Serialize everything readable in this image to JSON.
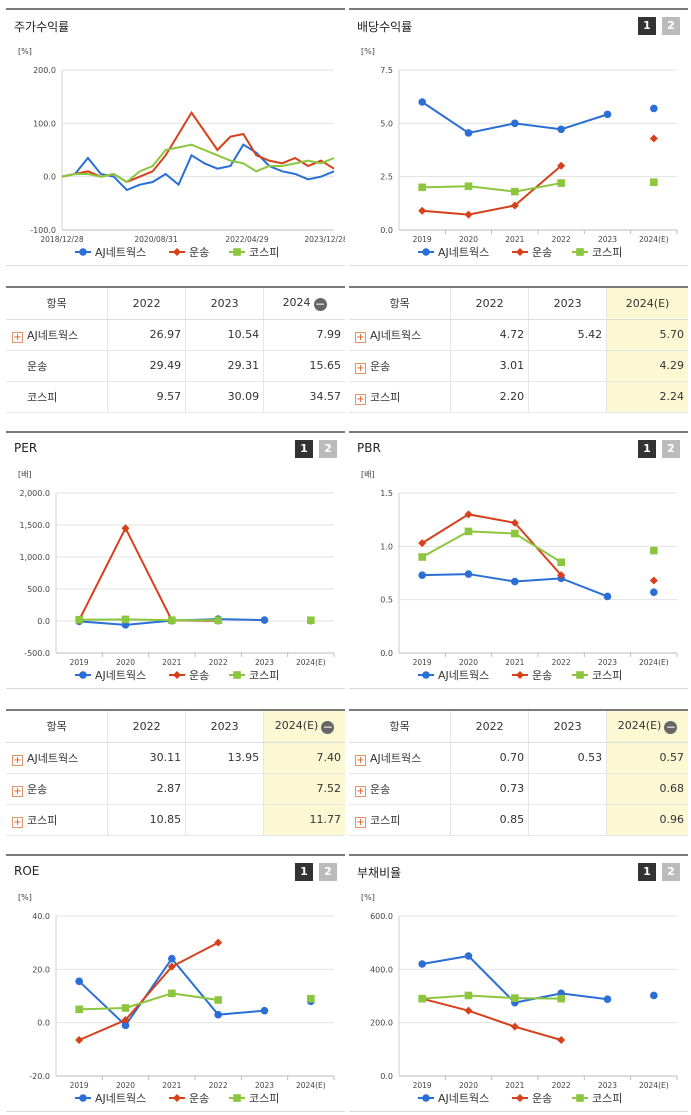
{
  "colors": {
    "company": "#2b6fd6",
    "industry": "#d6401b",
    "kospi": "#8cc63f"
  },
  "charts": [
    {
      "id": "stock-return",
      "title": "주가수익률",
      "unit": "[%]",
      "pager": false,
      "type": "line",
      "ylim": [
        -100,
        200
      ],
      "yticks": [
        "200.0",
        "100.0",
        "0.0",
        "-100.0"
      ],
      "xticks": [
        "2018/12/28",
        "2020/08/31",
        "2022/04/29",
        "2023/12/28"
      ],
      "legend": [
        "AJ네트웍스",
        "운송",
        "코스피"
      ]
    },
    {
      "id": "dividend-yield",
      "title": "배당수익률",
      "unit": "[%]",
      "pager": true,
      "yticks": [
        "7.5",
        "5.0",
        "2.5",
        "0.0"
      ],
      "ylim": [
        0,
        7.5
      ],
      "xticks": [
        "2019",
        "2020",
        "2021",
        "2022",
        "2023",
        "2024(E)"
      ],
      "legend": [
        "AJ네트웍스",
        "운송",
        "코스피"
      ]
    },
    {
      "id": "per",
      "title": "PER",
      "unit": "[배]",
      "pager": true,
      "yticks": [
        "2,000.0",
        "1,500.0",
        "1,000.0",
        "500.0",
        "0.0",
        "-500.0"
      ],
      "ylim": [
        -500,
        2000
      ],
      "xticks": [
        "2019",
        "2020",
        "2021",
        "2022",
        "2023",
        "2024(E)"
      ],
      "legend": [
        "AJ네트웍스",
        "운송",
        "코스피"
      ]
    },
    {
      "id": "pbr",
      "title": "PBR",
      "unit": "[배]",
      "pager": true,
      "yticks": [
        "1.5",
        "1.0",
        "0.5",
        "0.0"
      ],
      "ylim": [
        0,
        1.5
      ],
      "xticks": [
        "2019",
        "2020",
        "2021",
        "2022",
        "2023",
        "2024(E)"
      ],
      "legend": [
        "AJ네트웍스",
        "운송",
        "코스피"
      ]
    },
    {
      "id": "roe",
      "title": "ROE",
      "unit": "[%]",
      "pager": true,
      "yticks": [
        "40.0",
        "20.0",
        "0.0",
        "-20.0"
      ],
      "ylim": [
        -20,
        40
      ],
      "xticks": [
        "2019",
        "2020",
        "2021",
        "2022",
        "2023",
        "2024(E)"
      ],
      "legend": [
        "AJ네트웍스",
        "운송",
        "코스피"
      ]
    },
    {
      "id": "debt-ratio",
      "title": "부채비율",
      "unit": "[%]",
      "pager": true,
      "yticks": [
        "600.0",
        "400.0",
        "200.0",
        "0.0"
      ],
      "ylim": [
        0,
        600
      ],
      "xticks": [
        "2019",
        "2020",
        "2021",
        "2022",
        "2023",
        "2024(E)"
      ],
      "legend": [
        "AJ네트웍스",
        "운송",
        "코스피"
      ]
    }
  ],
  "chart_data": [
    {
      "type": "line",
      "title": "주가수익률",
      "ylim": [
        -100,
        200
      ],
      "x": [
        "2018/12/28",
        "2019/03",
        "2019/06",
        "2019/09",
        "2019/12",
        "2020/03",
        "2020/06",
        "2020/08/31",
        "2020/12",
        "2021/03",
        "2021/06",
        "2021/09",
        "2021/12",
        "2022/02",
        "2022/04/29",
        "2022/07",
        "2022/10",
        "2023/01",
        "2023/04",
        "2023/07",
        "2023/10",
        "2023/12/28"
      ],
      "series": [
        {
          "name": "AJ네트웍스",
          "values": [
            0,
            5,
            35,
            5,
            0,
            -25,
            -15,
            -10,
            5,
            -15,
            40,
            25,
            15,
            20,
            60,
            45,
            20,
            10,
            5,
            -5,
            0,
            10
          ]
        },
        {
          "name": "운송",
          "values": [
            0,
            5,
            10,
            0,
            5,
            -10,
            0,
            10,
            40,
            80,
            120,
            85,
            50,
            75,
            80,
            40,
            30,
            25,
            35,
            20,
            30,
            15
          ]
        },
        {
          "name": "코스피",
          "values": [
            0,
            5,
            5,
            0,
            5,
            -10,
            10,
            20,
            50,
            55,
            60,
            50,
            40,
            30,
            25,
            10,
            20,
            20,
            25,
            30,
            25,
            35
          ]
        }
      ]
    },
    {
      "type": "line",
      "title": "배당수익률",
      "x": [
        "2019",
        "2020",
        "2021",
        "2022",
        "2023",
        "2024(E)"
      ],
      "series": [
        {
          "name": "AJ네트웍스",
          "values": [
            6.0,
            4.55,
            5.0,
            4.72,
            5.42,
            5.7
          ]
        },
        {
          "name": "운송",
          "values": [
            0.9,
            0.72,
            1.15,
            3.01,
            null,
            4.29
          ]
        },
        {
          "name": "코스피",
          "values": [
            2.0,
            2.05,
            1.8,
            2.2,
            null,
            2.24
          ]
        }
      ]
    },
    {
      "type": "line",
      "title": "PER",
      "x": [
        "2019",
        "2020",
        "2021",
        "2022",
        "2023",
        "2024(E)"
      ],
      "series": [
        {
          "name": "AJ네트웍스",
          "values": [
            -5,
            -60,
            5,
            30.11,
            13.95,
            7.4
          ]
        },
        {
          "name": "운송",
          "values": [
            15,
            1450,
            10,
            2.87,
            null,
            7.52
          ]
        },
        {
          "name": "코스피",
          "values": [
            20,
            25,
            12,
            10.85,
            null,
            11.77
          ]
        }
      ]
    },
    {
      "type": "line",
      "title": "PBR",
      "x": [
        "2019",
        "2020",
        "2021",
        "2022",
        "2023",
        "2024(E)"
      ],
      "series": [
        {
          "name": "AJ네트웍스",
          "values": [
            0.73,
            0.74,
            0.67,
            0.7,
            0.53,
            0.57
          ]
        },
        {
          "name": "운송",
          "values": [
            1.03,
            1.3,
            1.22,
            0.73,
            null,
            0.68
          ]
        },
        {
          "name": "코스피",
          "values": [
            0.9,
            1.14,
            1.12,
            0.85,
            null,
            0.96
          ]
        }
      ]
    },
    {
      "type": "line",
      "title": "ROE",
      "x": [
        "2019",
        "2020",
        "2021",
        "2022",
        "2023",
        "2024(E)"
      ],
      "series": [
        {
          "name": "AJ네트웍스",
          "values": [
            15.5,
            -1.0,
            24.0,
            3.0,
            4.5,
            8.0
          ]
        },
        {
          "name": "운송",
          "values": [
            -6.5,
            1.0,
            21.0,
            30.0,
            null,
            null
          ]
        },
        {
          "name": "코스피",
          "values": [
            5.0,
            5.5,
            11.0,
            8.5,
            null,
            9.0
          ]
        }
      ]
    },
    {
      "type": "line",
      "title": "부채비율",
      "x": [
        "2019",
        "2020",
        "2021",
        "2022",
        "2023",
        "2024(E)"
      ],
      "series": [
        {
          "name": "AJ네트웍스",
          "values": [
            420,
            450,
            275,
            310,
            288,
            302
          ]
        },
        {
          "name": "운송",
          "values": [
            290,
            245,
            185,
            135,
            null,
            null
          ]
        },
        {
          "name": "코스피",
          "values": [
            290,
            302,
            292,
            290,
            null,
            null
          ]
        }
      ]
    }
  ],
  "tables": [
    {
      "id": "table-stock-return",
      "headers": [
        "항목",
        "2022",
        "2023",
        "2024"
      ],
      "minus": true,
      "hl_col": false,
      "rows": [
        {
          "name": "AJ네트웍스",
          "plus": true,
          "cells": [
            "26.97",
            "10.54",
            "7.99"
          ]
        },
        {
          "name": "운송",
          "plus": false,
          "cells": [
            "29.49",
            "29.31",
            "15.65"
          ]
        },
        {
          "name": "코스피",
          "plus": false,
          "cells": [
            "9.57",
            "30.09",
            "34.57"
          ]
        }
      ]
    },
    {
      "id": "table-dividend",
      "headers": [
        "항목",
        "2022",
        "2023",
        "2024(E)"
      ],
      "minus": false,
      "hl_col": true,
      "rows": [
        {
          "name": "AJ네트웍스",
          "plus": true,
          "cells": [
            "4.72",
            "5.42",
            "5.70"
          ]
        },
        {
          "name": "운송",
          "plus": true,
          "cells": [
            "3.01",
            "",
            "4.29"
          ]
        },
        {
          "name": "코스피",
          "plus": true,
          "cells": [
            "2.20",
            "",
            "2.24"
          ]
        }
      ]
    },
    {
      "id": "table-per",
      "headers": [
        "항목",
        "2022",
        "2023",
        "2024(E)"
      ],
      "minus": true,
      "hl_col": true,
      "rows": [
        {
          "name": "AJ네트웍스",
          "plus": true,
          "cells": [
            "30.11",
            "13.95",
            "7.40"
          ]
        },
        {
          "name": "운송",
          "plus": true,
          "cells": [
            "2.87",
            "",
            "7.52"
          ]
        },
        {
          "name": "코스피",
          "plus": true,
          "cells": [
            "10.85",
            "",
            "11.77"
          ]
        }
      ]
    },
    {
      "id": "table-pbr",
      "headers": [
        "항목",
        "2022",
        "2023",
        "2024(E)"
      ],
      "minus": true,
      "hl_col": true,
      "rows": [
        {
          "name": "AJ네트웍스",
          "plus": true,
          "cells": [
            "0.70",
            "0.53",
            "0.57"
          ]
        },
        {
          "name": "운송",
          "plus": true,
          "cells": [
            "0.73",
            "",
            "0.68"
          ]
        },
        {
          "name": "코스피",
          "plus": true,
          "cells": [
            "0.85",
            "",
            "0.96"
          ]
        }
      ]
    }
  ],
  "pager_labels": [
    "1",
    "2"
  ]
}
